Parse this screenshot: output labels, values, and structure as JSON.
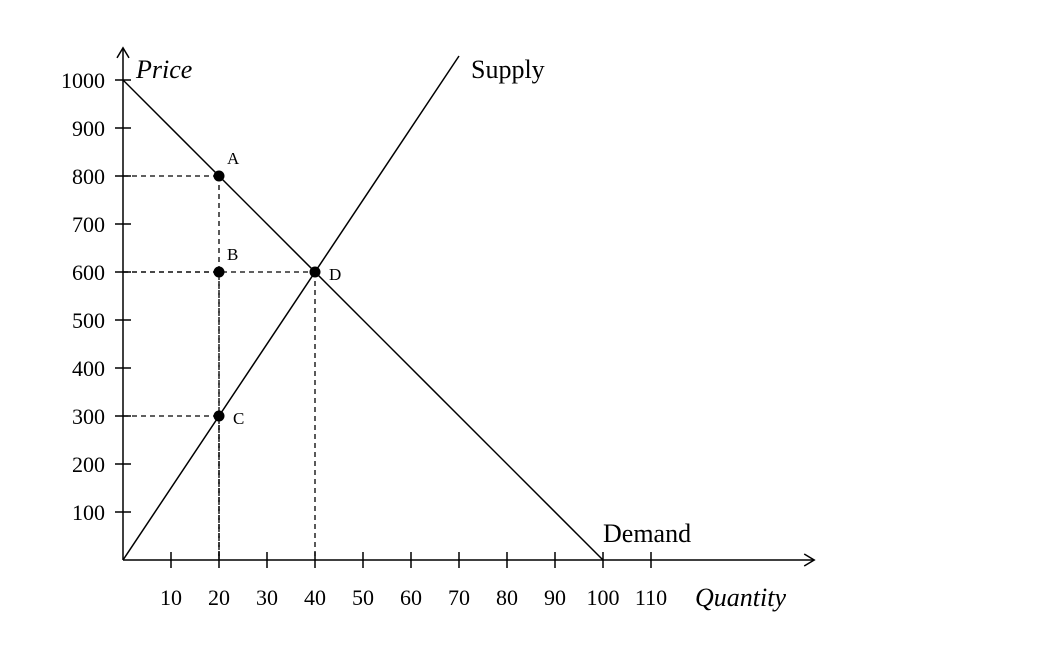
{
  "chart_data": {
    "type": "line",
    "x_label": "Quantity",
    "y_label": "Price",
    "xlim": [
      0,
      144
    ],
    "ylim": [
      0,
      1067
    ],
    "xticks": [
      10,
      20,
      30,
      40,
      50,
      60,
      70,
      80,
      90,
      100,
      110
    ],
    "yticks": [
      100,
      200,
      300,
      400,
      500,
      600,
      700,
      800,
      900,
      1000
    ],
    "series": [
      {
        "name": "Supply",
        "color": "#000000",
        "x": [
          0,
          70
        ],
        "values": [
          0,
          1050
        ]
      },
      {
        "name": "Demand",
        "color": "#000000",
        "x": [
          0,
          100
        ],
        "values": [
          1000,
          0
        ]
      }
    ],
    "points": [
      {
        "label": "A",
        "x": 20,
        "y": 800
      },
      {
        "label": "B",
        "x": 20,
        "y": 600
      },
      {
        "label": "C",
        "x": 20,
        "y": 300
      },
      {
        "label": "D",
        "x": 40,
        "y": 600
      }
    ]
  }
}
